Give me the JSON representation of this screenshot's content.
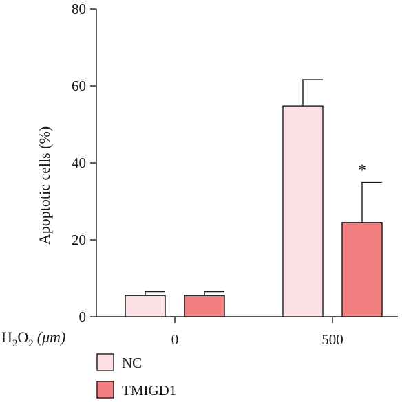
{
  "chart_data": {
    "type": "bar",
    "title": "",
    "ylabel": "Apoptotic cells (%)",
    "xlabel": {
      "prefix_main": "H",
      "prefix_sub": "2",
      "prefix_o": "O",
      "prefix_o_sub": "2",
      "unit": "(μm)"
    },
    "categories": [
      "0",
      "500"
    ],
    "ylim": [
      0,
      80
    ],
    "yticks": [
      "0",
      "20",
      "40",
      "60",
      "80"
    ],
    "series": [
      {
        "name": "NC",
        "values": [
          5.5,
          54.8
        ],
        "errors": [
          1.0,
          6.8
        ],
        "color": "#fde0e3"
      },
      {
        "name": "TMIGD1",
        "values": [
          5.5,
          24.5
        ],
        "errors": [
          1.0,
          10.4
        ],
        "color": "#f28080"
      }
    ],
    "annotations": [
      {
        "text": "*",
        "category": "500",
        "series": "TMIGD1"
      }
    ],
    "legend_position": "bottom-left",
    "grid": false
  }
}
